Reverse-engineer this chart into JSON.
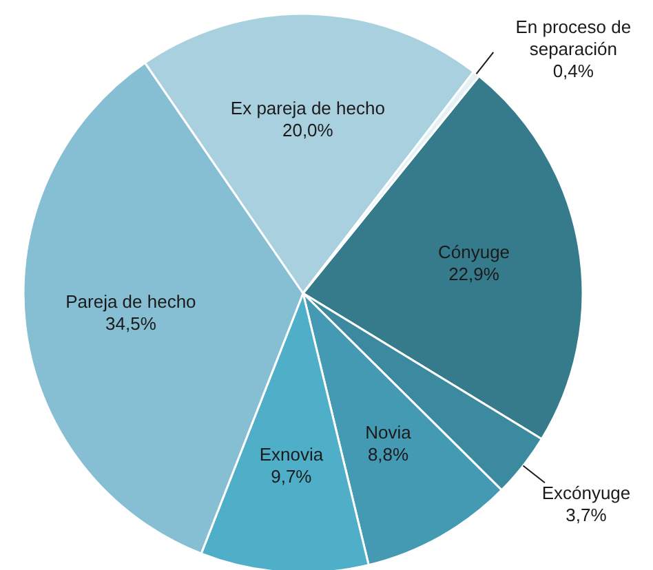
{
  "chart_data": {
    "type": "pie",
    "categories": [
      "Cónyuge",
      "Excónyuge",
      "Novia",
      "Exnovia",
      "Pareja de hecho",
      "Ex pareja de hecho",
      "En proceso de separación"
    ],
    "values": [
      22.9,
      3.7,
      8.8,
      9.7,
      34.5,
      20.0,
      0.4
    ],
    "value_labels": [
      "22,9%",
      "3,7%",
      "8,8%",
      "9,7%",
      "34,5%",
      "20,0%",
      "0,4%"
    ],
    "colors": [
      "#357b8c",
      "#3c8aa0",
      "#4499b3",
      "#4fafc8",
      "#86bfd3",
      "#a8d0de",
      "#e4f1f5"
    ]
  }
}
